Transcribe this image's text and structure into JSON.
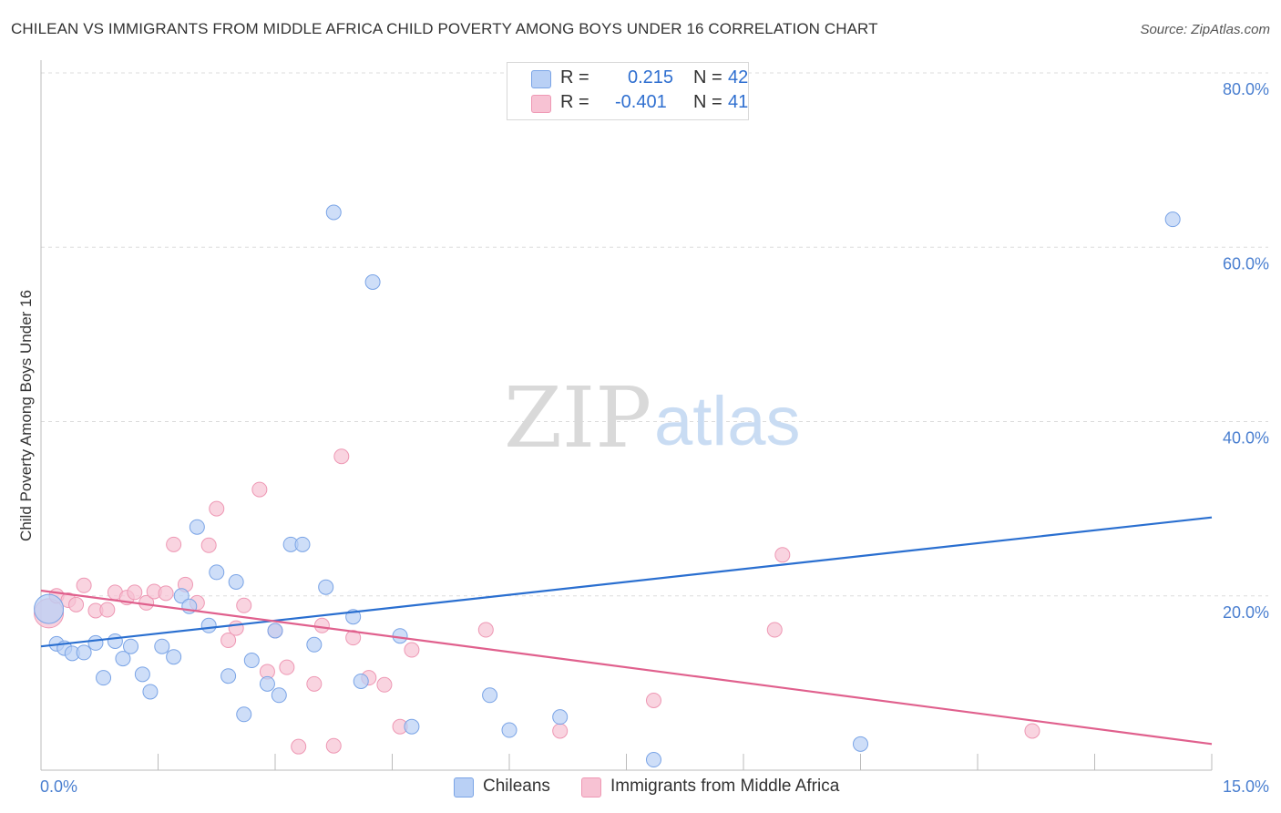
{
  "title": "CHILEAN VS IMMIGRANTS FROM MIDDLE AFRICA CHILD POVERTY AMONG BOYS UNDER 16 CORRELATION CHART",
  "source": "Source: ZipAtlas.com",
  "watermark": {
    "zip": "ZIP",
    "atlas": "atlas"
  },
  "legend": {
    "r_label": "R =",
    "n_label": "N =",
    "rows": [
      {
        "r": "0.215",
        "n": "42"
      },
      {
        "r": "-0.401",
        "n": "41"
      }
    ]
  },
  "colors": {
    "blue_fill": "#b9d0f5",
    "blue_stroke": "#7aa4e6",
    "blue_line": "#2a6fd0",
    "pink_fill": "#f7c2d3",
    "pink_stroke": "#ee98b4",
    "pink_line": "#e0608d",
    "grid": "#dddddd",
    "tick_text": "#4a7fd0"
  },
  "chart_data": {
    "type": "scatter",
    "title": "CHILEAN VS IMMIGRANTS FROM MIDDLE AFRICA CHILD POVERTY AMONG BOYS UNDER 16 CORRELATION CHART",
    "xlabel": "",
    "ylabel": "Child Poverty Among Boys Under 16",
    "xlim": [
      0,
      15
    ],
    "ylim": [
      0,
      80
    ],
    "x_tick_labels": [
      "0.0%",
      "15.0%"
    ],
    "y_ticks": [
      20,
      40,
      60,
      80
    ],
    "y_tick_labels": [
      "20.0%",
      "40.0%",
      "60.0%",
      "80.0%"
    ],
    "grid": true,
    "series": [
      {
        "name": "Chileans",
        "r": 0.215,
        "n": 42,
        "trend": {
          "x": [
            0,
            15
          ],
          "y": [
            14.2,
            29.0
          ]
        },
        "points": [
          [
            0.1,
            18.5
          ],
          [
            0.2,
            14.5
          ],
          [
            0.3,
            14.0
          ],
          [
            0.4,
            13.4
          ],
          [
            0.55,
            13.5
          ],
          [
            0.7,
            14.6
          ],
          [
            0.8,
            10.6
          ],
          [
            0.95,
            14.8
          ],
          [
            1.05,
            12.8
          ],
          [
            1.15,
            14.2
          ],
          [
            1.3,
            11.0
          ],
          [
            1.4,
            9.0
          ],
          [
            1.55,
            14.2
          ],
          [
            1.7,
            13.0
          ],
          [
            1.8,
            20.0
          ],
          [
            1.9,
            18.8
          ],
          [
            2.0,
            27.9
          ],
          [
            2.15,
            16.6
          ],
          [
            2.25,
            22.7
          ],
          [
            2.4,
            10.8
          ],
          [
            2.5,
            21.6
          ],
          [
            2.6,
            6.4
          ],
          [
            2.7,
            12.6
          ],
          [
            2.9,
            9.9
          ],
          [
            3.0,
            16.0
          ],
          [
            3.05,
            8.6
          ],
          [
            3.2,
            25.9
          ],
          [
            3.35,
            25.9
          ],
          [
            3.5,
            14.4
          ],
          [
            3.65,
            21.0
          ],
          [
            3.75,
            64.0
          ],
          [
            4.0,
            17.6
          ],
          [
            4.1,
            10.2
          ],
          [
            4.25,
            56.0
          ],
          [
            4.6,
            15.4
          ],
          [
            4.75,
            5.0
          ],
          [
            5.75,
            8.6
          ],
          [
            6.0,
            4.6
          ],
          [
            6.65,
            6.1
          ],
          [
            7.85,
            1.2
          ],
          [
            10.5,
            3.0
          ],
          [
            14.5,
            63.2
          ]
        ]
      },
      {
        "name": "Immigrants from Middle Africa",
        "r": -0.401,
        "n": 41,
        "trend": {
          "x": [
            0,
            15
          ],
          "y": [
            20.6,
            3.0
          ]
        },
        "points": [
          [
            0.1,
            18.0
          ],
          [
            0.2,
            20.0
          ],
          [
            0.35,
            19.5
          ],
          [
            0.45,
            19.0
          ],
          [
            0.55,
            21.2
          ],
          [
            0.7,
            18.3
          ],
          [
            0.85,
            18.4
          ],
          [
            0.95,
            20.4
          ],
          [
            1.1,
            19.8
          ],
          [
            1.2,
            20.4
          ],
          [
            1.35,
            19.2
          ],
          [
            1.45,
            20.5
          ],
          [
            1.6,
            20.3
          ],
          [
            1.7,
            25.9
          ],
          [
            1.85,
            21.3
          ],
          [
            2.0,
            19.2
          ],
          [
            2.15,
            25.8
          ],
          [
            2.25,
            30.0
          ],
          [
            2.4,
            14.9
          ],
          [
            2.5,
            16.3
          ],
          [
            2.6,
            18.9
          ],
          [
            2.8,
            32.2
          ],
          [
            2.9,
            11.3
          ],
          [
            3.0,
            16.0
          ],
          [
            3.15,
            11.8
          ],
          [
            3.3,
            2.7
          ],
          [
            3.5,
            9.9
          ],
          [
            3.6,
            16.6
          ],
          [
            3.75,
            2.8
          ],
          [
            3.85,
            36.0
          ],
          [
            4.0,
            15.2
          ],
          [
            4.2,
            10.6
          ],
          [
            4.4,
            9.8
          ],
          [
            4.6,
            5.0
          ],
          [
            4.75,
            13.8
          ],
          [
            5.7,
            16.1
          ],
          [
            6.65,
            4.5
          ],
          [
            7.85,
            8.0
          ],
          [
            9.4,
            16.1
          ],
          [
            9.5,
            24.7
          ],
          [
            12.7,
            4.5
          ]
        ]
      }
    ]
  },
  "bottom_legend": [
    {
      "label": "Chileans"
    },
    {
      "label": "Immigrants from Middle Africa"
    }
  ]
}
